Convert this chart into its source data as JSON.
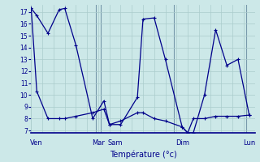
{
  "title": "Température (°c)",
  "background_color": "#cce8e8",
  "grid_color": "#aacccc",
  "line_color": "#00008B",
  "ylim": [
    6.8,
    17.6
  ],
  "yticks": [
    7,
    8,
    9,
    10,
    11,
    12,
    13,
    14,
    15,
    16,
    17
  ],
  "xlim": [
    0,
    20
  ],
  "line1_x": [
    0.0,
    0.5,
    1.5,
    2.5,
    3.0,
    4.0,
    5.5,
    6.5,
    7.0,
    8.0,
    9.5,
    10.0,
    11.0,
    12.0,
    13.5,
    14.0,
    14.5,
    15.5,
    16.5,
    17.5,
    18.5,
    19.5
  ],
  "line1_y": [
    17.3,
    16.7,
    15.2,
    17.2,
    17.3,
    14.2,
    8.0,
    9.5,
    7.5,
    7.5,
    9.8,
    16.4,
    16.5,
    13.0,
    7.3,
    6.8,
    6.8,
    10.0,
    15.5,
    12.5,
    13.0,
    8.3
  ],
  "line2_x": [
    0.0,
    0.5,
    1.5,
    2.5,
    3.0,
    4.0,
    5.5,
    6.5,
    7.0,
    8.0,
    9.5,
    10.0,
    11.0,
    12.0,
    13.5,
    14.0,
    14.5,
    15.5,
    16.5,
    17.5,
    18.5,
    19.5
  ],
  "line2_y": [
    17.3,
    10.3,
    8.0,
    8.0,
    8.0,
    8.2,
    8.5,
    8.8,
    7.5,
    7.8,
    8.5,
    8.5,
    8.0,
    7.8,
    7.3,
    6.8,
    8.0,
    8.0,
    8.2,
    8.2,
    8.2,
    8.3
  ],
  "vlines": [
    5.75,
    6.25,
    12.75,
    19.25
  ],
  "day_labels": [
    "Ven",
    "Mar",
    "Sam",
    "Dim",
    "Lun"
  ],
  "day_x": [
    0.5,
    6.0,
    7.5,
    13.5,
    19.5
  ]
}
